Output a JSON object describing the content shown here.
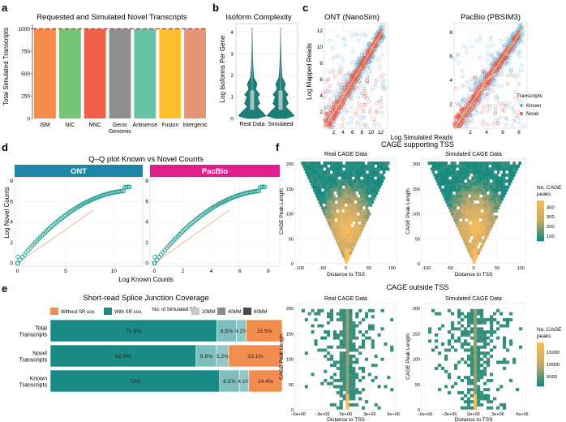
{
  "panels": {
    "a": "a",
    "b": "b",
    "c": "c",
    "d": "d",
    "e": "e",
    "f": "f"
  },
  "colors": {
    "teal": "#1a8a84",
    "orange": "#f28c4f",
    "blue": "#6aaed6",
    "red": "#e8584a",
    "ont": "#1e86a6",
    "pacbio": "#e01e8c",
    "cage_low": "#178a80",
    "cage_high": "#f7bd5a"
  },
  "chart_data": [
    {
      "id": "a",
      "type": "bar",
      "title": "Requested and Simulated Novel Transcripts",
      "xlabel": "",
      "ylabel": "Total Simulated Transcripts",
      "categories": [
        "ISM",
        "NIC",
        "NNC",
        "Genic Genomic",
        "Antisense",
        "Fusion",
        "Intergenic"
      ],
      "category_lines": [
        [
          "ISM"
        ],
        [
          "NIC"
        ],
        [
          "NNC"
        ],
        [
          "Genic",
          "Genomic"
        ],
        [
          "Antisense"
        ],
        [
          "Fusion"
        ],
        [
          "Intergenic"
        ]
      ],
      "values": [
        1000,
        1000,
        1000,
        1000,
        1000,
        1000,
        1000
      ],
      "bar_colors": [
        "#f58b4c",
        "#74c476",
        "#ee6048",
        "#8f8f8f",
        "#66c2a5",
        "#fdbf2d",
        "#e89477"
      ],
      "ylim": [
        0,
        1050
      ],
      "yticks": [
        0,
        250,
        500,
        750,
        1000
      ],
      "reference_line": 1000
    },
    {
      "id": "b",
      "type": "violin",
      "title": "Isoform Complexity",
      "ylabel": "Log Isoforms Per Gene",
      "categories": [
        "Real Data",
        "Simulated"
      ],
      "ylim": [
        0,
        4.4
      ],
      "yticks": [
        0,
        1,
        2,
        3,
        4
      ],
      "profile": [
        [
          0,
          0.35
        ],
        [
          0.12,
          1.0
        ],
        [
          0.3,
          0.75
        ],
        [
          0.55,
          0.35
        ],
        [
          0.7,
          0.55
        ],
        [
          1.0,
          0.38
        ],
        [
          1.1,
          0.55
        ],
        [
          1.35,
          0.25
        ],
        [
          1.6,
          0.35
        ],
        [
          1.9,
          0.12
        ],
        [
          2.3,
          0.07
        ],
        [
          2.8,
          0.04
        ],
        [
          3.3,
          0.025
        ],
        [
          3.9,
          0.015
        ],
        [
          4.2,
          0.0
        ]
      ]
    },
    {
      "id": "c",
      "type": "scatter",
      "xlabel": "Log Simulated Reads",
      "ylabel": "Log Mapped Reads",
      "legend_title": "Transcripts",
      "legend_placement": "bottom-right of PacBio panel",
      "series": [
        {
          "name": "Known",
          "color": "#6aaed6"
        },
        {
          "name": "Novel",
          "color": "#e8584a"
        }
      ],
      "facets": [
        {
          "title": "ONT (NanoSim)",
          "xlim": [
            0,
            13.5
          ],
          "ylim": [
            0,
            13
          ],
          "xticks": [
            2,
            4,
            6,
            8,
            10,
            12
          ],
          "yticks": [
            2,
            4,
            6,
            8,
            10,
            12
          ]
        },
        {
          "title": "PacBio (PBSIM3)",
          "xlim": [
            0,
            9
          ],
          "ylim": [
            0,
            8.8
          ],
          "xticks": [
            2,
            4,
            6,
            8
          ],
          "yticks": [
            2,
            4,
            6,
            8
          ]
        }
      ]
    },
    {
      "id": "d",
      "type": "scatter",
      "title": "Q–Q plot Known vs Novel Counts",
      "xlabel": "Log Known Counts",
      "ylabel": "Log Novel Counts",
      "facets": [
        {
          "title": "ONT",
          "xlim": [
            -0.3,
            13
          ],
          "ylim": [
            -0.3,
            8.3
          ],
          "xticks": [
            0,
            5,
            10
          ],
          "yticks": [
            0,
            2,
            4,
            6,
            8
          ]
        },
        {
          "title": "PacBio",
          "xlim": [
            -0.3,
            8.8
          ],
          "ylim": [
            -0.3,
            8.3
          ],
          "xticks": [
            0,
            2,
            4,
            6,
            8
          ],
          "yticks": [
            0,
            2,
            4,
            6,
            8
          ]
        }
      ]
    },
    {
      "id": "e",
      "type": "bar",
      "orientation": "horizontal-stacked",
      "title": "Short-read Splice Junction Coverage",
      "legend": {
        "fill": [
          {
            "name": "Without SR cov.",
            "color": "#f28c4f"
          },
          {
            "name": "With SR cov.",
            "color": "#1a8a84"
          }
        ],
        "depth_title": "No. of Simulated SR",
        "depth": [
          "20MM",
          "40MM",
          "60MM"
        ]
      },
      "categories": [
        "Total Transcripts",
        "Novel Transcripts",
        "Known Transcripts"
      ],
      "category_lines": [
        [
          "Total",
          "Transcripts"
        ],
        [
          "Novel",
          "Transcripts"
        ],
        [
          "Known",
          "Transcripts"
        ]
      ],
      "series": [
        {
          "name": "With SR cov. 20MM",
          "values": [
            71.8,
            62.9,
            73.0
          ],
          "labels": [
            "71.8%",
            "62.9%",
            "73%"
          ]
        },
        {
          "name": "With SR cov. 40MM",
          "values": [
            8.5,
            8.8,
            8.5
          ],
          "labels": [
            "8.5%",
            "8.8%",
            "8.5%"
          ]
        },
        {
          "name": "With SR cov. 60MM",
          "values": [
            4.2,
            5.2,
            4.1
          ],
          "labels": [
            "4.2%",
            "5.2%",
            "4.1%"
          ]
        },
        {
          "name": "Without SR cov.",
          "values": [
            15.5,
            23.1,
            14.4
          ],
          "labels": [
            "15.5%",
            "23.1%",
            "14.4%"
          ]
        }
      ]
    },
    {
      "id": "f",
      "type": "heatmap",
      "title": "CAGE supporting TSS",
      "subtitle": "CAGE outside TSS",
      "top": {
        "facets": [
          "Real CAGE Data",
          "Simulated CAGE Data"
        ],
        "xlabel": "Distance to TSS",
        "ylabel": "CAGE Peak Length",
        "xlim": [
          -110,
          110
        ],
        "ylim": [
          0,
          210
        ],
        "xticks": [
          -100,
          -50,
          0,
          50,
          100
        ],
        "yticks": [
          0,
          50,
          100,
          150,
          200
        ],
        "legend_title": "No. CAGE peaks",
        "legend_ticks": [
          100,
          200,
          300,
          400
        ],
        "legend_range": [
          50,
          470
        ]
      },
      "bottom": {
        "facets": [
          "Real CAGE Data",
          "Simulated CAGE Data"
        ],
        "xlabel": "Distance to TSS",
        "ylabel": "CAGE Peak Length",
        "xlim": [
          -6400000,
          6400000
        ],
        "ylim": [
          0,
          210
        ],
        "xticks": [
          -6000000,
          -3000000,
          0,
          3000000,
          6000000
        ],
        "xtick_labels": [
          "−6e+06",
          "−3e+06",
          "0e+00",
          "3e+06",
          "6e+06"
        ],
        "yticks": [
          0,
          50,
          100,
          150,
          200
        ],
        "legend_title": "No. CAGE peaks",
        "legend_ticks": [
          5000,
          10000,
          15000
        ],
        "legend_range": [
          1000,
          19000
        ]
      }
    }
  ]
}
